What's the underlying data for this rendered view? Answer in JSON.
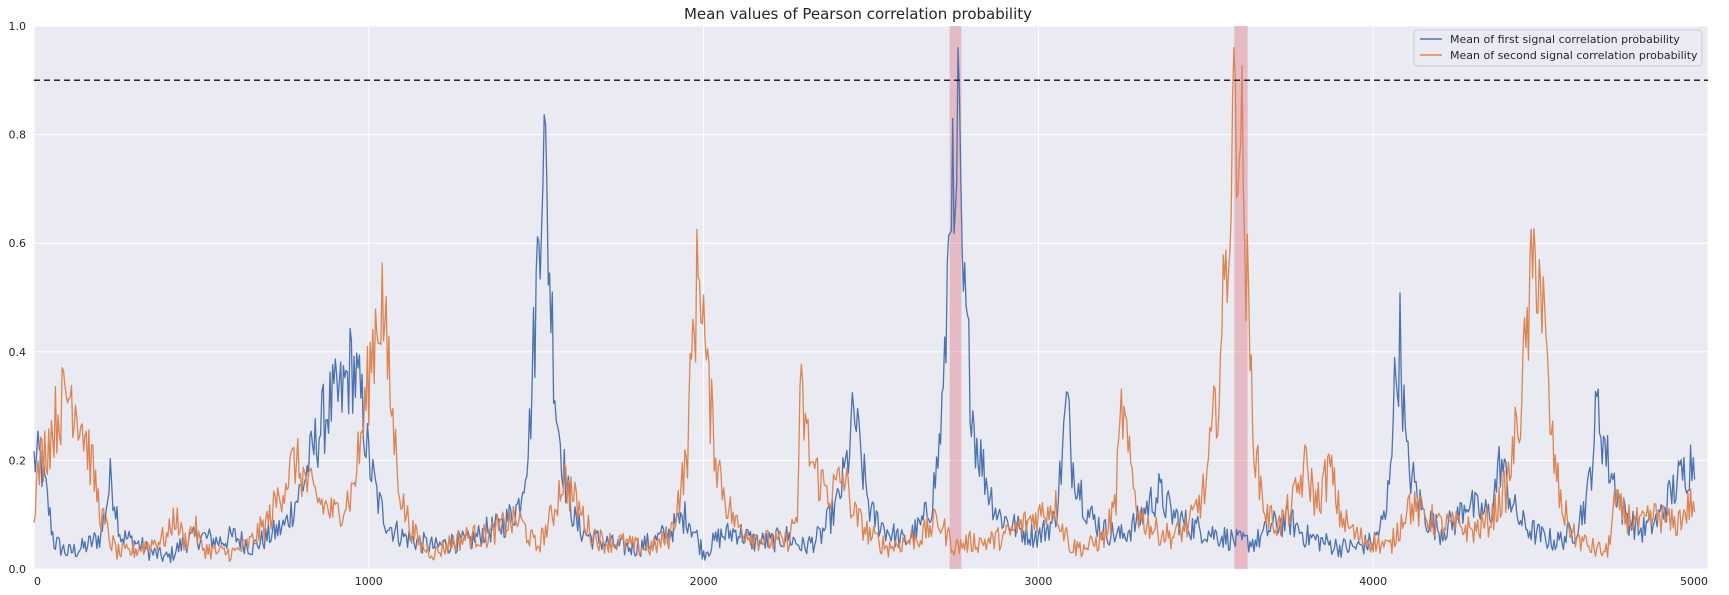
{
  "chart_data": {
    "type": "line",
    "title": "Mean values of Pearson correlation probability",
    "xlabel": "",
    "ylabel": "",
    "xlim": [
      0,
      5000
    ],
    "ylim": [
      0.0,
      1.0
    ],
    "xticks": [
      0,
      1000,
      2000,
      3000,
      4000,
      5000
    ],
    "xtick_labels": [
      "0",
      "1000",
      "2000",
      "3000",
      "4000",
      "5000"
    ],
    "yticks": [
      0.0,
      0.2,
      0.4,
      0.6,
      0.8,
      1.0
    ],
    "ytick_labels": [
      "0.0",
      "0.2",
      "0.4",
      "0.6",
      "0.8",
      "1.0"
    ],
    "grid": true,
    "legend_position": "top-right",
    "threshold": {
      "y": 0.9,
      "style": "dashed",
      "color": "#262626"
    },
    "highlight_spans": [
      {
        "x0": 2735,
        "x1": 2770,
        "color": "#e06070"
      },
      {
        "x0": 3585,
        "x1": 3625,
        "color": "#e06070"
      }
    ],
    "series": [
      {
        "name": "Mean of first signal correlation probability",
        "color": "#4c72b0",
        "x": [
          0,
          20,
          60,
          100,
          150,
          200,
          230,
          260,
          300,
          350,
          400,
          450,
          500,
          550,
          600,
          650,
          700,
          750,
          800,
          850,
          880,
          920,
          950,
          980,
          1000,
          1030,
          1060,
          1100,
          1150,
          1200,
          1250,
          1300,
          1350,
          1400,
          1450,
          1480,
          1500,
          1520,
          1540,
          1560,
          1590,
          1620,
          1660,
          1700,
          1750,
          1800,
          1850,
          1900,
          1950,
          2000,
          2050,
          2100,
          2150,
          2200,
          2250,
          2300,
          2350,
          2400,
          2430,
          2450,
          2470,
          2500,
          2550,
          2600,
          2650,
          2680,
          2700,
          2720,
          2740,
          2750,
          2760,
          2770,
          2790,
          2810,
          2850,
          2880,
          2950,
          3000,
          3050,
          3070,
          3085,
          3100,
          3150,
          3200,
          3250,
          3300,
          3330,
          3360,
          3400,
          3450,
          3500,
          3550,
          3600,
          3650,
          3700,
          3750,
          3800,
          3850,
          3900,
          3950,
          4000,
          4040,
          4060,
          4080,
          4100,
          4150,
          4200,
          4250,
          4280,
          4300,
          4350,
          4380,
          4420,
          4450,
          4500,
          4550,
          4600,
          4640,
          4670,
          4700,
          4750,
          4800,
          4850,
          4900,
          4950
        ],
        "y": [
          0.2,
          0.2,
          0.05,
          0.03,
          0.04,
          0.06,
          0.17,
          0.06,
          0.05,
          0.03,
          0.02,
          0.05,
          0.06,
          0.05,
          0.06,
          0.04,
          0.06,
          0.08,
          0.15,
          0.25,
          0.3,
          0.32,
          0.38,
          0.3,
          0.2,
          0.12,
          0.08,
          0.06,
          0.05,
          0.04,
          0.05,
          0.05,
          0.07,
          0.08,
          0.12,
          0.25,
          0.5,
          0.82,
          0.55,
          0.3,
          0.15,
          0.08,
          0.06,
          0.05,
          0.04,
          0.04,
          0.05,
          0.07,
          0.1,
          0.03,
          0.06,
          0.07,
          0.05,
          0.05,
          0.06,
          0.04,
          0.06,
          0.12,
          0.2,
          0.29,
          0.2,
          0.1,
          0.07,
          0.05,
          0.08,
          0.12,
          0.2,
          0.35,
          0.8,
          0.5,
          0.9,
          0.55,
          0.4,
          0.25,
          0.15,
          0.1,
          0.07,
          0.06,
          0.09,
          0.2,
          0.31,
          0.2,
          0.1,
          0.07,
          0.06,
          0.09,
          0.12,
          0.14,
          0.1,
          0.08,
          0.07,
          0.06,
          0.05,
          0.05,
          0.08,
          0.09,
          0.06,
          0.05,
          0.04,
          0.04,
          0.05,
          0.1,
          0.3,
          0.42,
          0.2,
          0.1,
          0.07,
          0.09,
          0.13,
          0.11,
          0.1,
          0.2,
          0.11,
          0.08,
          0.06,
          0.05,
          0.07,
          0.13,
          0.3,
          0.2,
          0.1,
          0.07,
          0.09,
          0.15,
          0.2
        ]
      },
      {
        "name": "Mean of second signal correlation probability",
        "color": "#dd8452",
        "x": [
          0,
          20,
          50,
          80,
          110,
          140,
          170,
          200,
          230,
          250,
          280,
          320,
          360,
          400,
          420,
          450,
          480,
          500,
          550,
          600,
          650,
          700,
          750,
          780,
          820,
          860,
          900,
          950,
          980,
          1000,
          1020,
          1040,
          1060,
          1080,
          1100,
          1130,
          1160,
          1200,
          1250,
          1300,
          1350,
          1400,
          1450,
          1480,
          1500,
          1520,
          1550,
          1580,
          1620,
          1660,
          1700,
          1750,
          1800,
          1850,
          1900,
          1950,
          1970,
          1990,
          2010,
          2040,
          2070,
          2100,
          2150,
          2200,
          2250,
          2280,
          2290,
          2300,
          2320,
          2350,
          2380,
          2420,
          2450,
          2500,
          2550,
          2600,
          2650,
          2700,
          2750,
          2800,
          2850,
          2900,
          2950,
          3000,
          3050,
          3070,
          3100,
          3150,
          3200,
          3230,
          3250,
          3270,
          3300,
          3350,
          3400,
          3450,
          3500,
          3540,
          3570,
          3590,
          3610,
          3630,
          3650,
          3680,
          3720,
          3760,
          3800,
          3830,
          3850,
          3870,
          3900,
          3950,
          4000,
          4050,
          4080,
          4100,
          4150,
          4200,
          4250,
          4300,
          4350,
          4400,
          4440,
          4470,
          4490,
          4510,
          4530,
          4560,
          4600,
          4650,
          4700,
          4720,
          4750,
          4800,
          4850,
          4900,
          4950
        ],
        "y": [
          0.12,
          0.2,
          0.25,
          0.3,
          0.33,
          0.28,
          0.2,
          0.1,
          0.05,
          0.03,
          0.03,
          0.04,
          0.05,
          0.06,
          0.1,
          0.05,
          0.08,
          0.04,
          0.03,
          0.03,
          0.05,
          0.09,
          0.16,
          0.2,
          0.15,
          0.12,
          0.1,
          0.14,
          0.25,
          0.35,
          0.45,
          0.5,
          0.35,
          0.22,
          0.12,
          0.07,
          0.04,
          0.03,
          0.05,
          0.06,
          0.06,
          0.08,
          0.09,
          0.06,
          0.04,
          0.06,
          0.1,
          0.17,
          0.12,
          0.07,
          0.05,
          0.05,
          0.04,
          0.04,
          0.06,
          0.2,
          0.45,
          0.58,
          0.35,
          0.2,
          0.12,
          0.08,
          0.06,
          0.05,
          0.05,
          0.1,
          0.32,
          0.28,
          0.2,
          0.16,
          0.14,
          0.17,
          0.1,
          0.06,
          0.04,
          0.05,
          0.06,
          0.09,
          0.04,
          0.05,
          0.05,
          0.06,
          0.08,
          0.1,
          0.12,
          0.08,
          0.04,
          0.04,
          0.06,
          0.12,
          0.3,
          0.2,
          0.1,
          0.07,
          0.06,
          0.08,
          0.15,
          0.35,
          0.65,
          0.9,
          0.75,
          0.4,
          0.2,
          0.1,
          0.08,
          0.12,
          0.19,
          0.12,
          0.15,
          0.19,
          0.1,
          0.06,
          0.05,
          0.04,
          0.08,
          0.12,
          0.1,
          0.08,
          0.08,
          0.07,
          0.09,
          0.15,
          0.3,
          0.5,
          0.6,
          0.45,
          0.25,
          0.12,
          0.06,
          0.04,
          0.03,
          0.12,
          0.1,
          0.08,
          0.1,
          0.08,
          0.12
        ]
      }
    ]
  }
}
